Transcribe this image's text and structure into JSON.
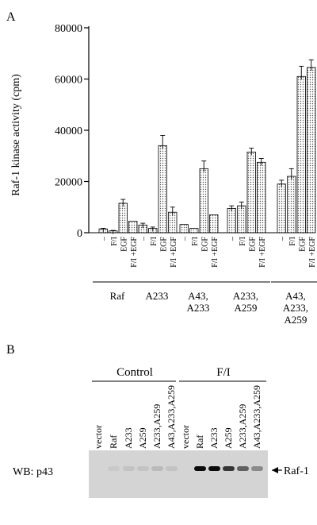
{
  "panel_a_label": "A",
  "panel_b_label": "B",
  "chart_data": {
    "type": "bar",
    "ylabel": "Raf-1 kinase activity (cpm)",
    "ylim": [
      0,
      80000
    ],
    "yticks": [
      "0",
      "20000",
      "40000",
      "60000",
      "80000"
    ],
    "condition_labels": [
      "–",
      "F/I",
      "EGF",
      "F/I +EGF"
    ],
    "groups": [
      {
        "name": "Raf",
        "label_lines": [
          "Raf"
        ],
        "values": [
          1500,
          700,
          11500,
          4500
        ],
        "errors": [
          200,
          200,
          1500,
          0
        ]
      },
      {
        "name": "A233",
        "label_lines": [
          "A233"
        ],
        "values": [
          3000,
          1700,
          34000,
          8000
        ],
        "errors": [
          700,
          500,
          4000,
          2000
        ]
      },
      {
        "name": "A43, A233",
        "label_lines": [
          "A43,",
          "A233"
        ],
        "values": [
          3200,
          1700,
          25000,
          7000
        ],
        "errors": [
          0,
          0,
          3000,
          0
        ]
      },
      {
        "name": "A233, A259",
        "label_lines": [
          "A233,",
          "A259"
        ],
        "values": [
          9500,
          10500,
          31500,
          27500
        ],
        "errors": [
          1000,
          1500,
          1500,
          1500
        ]
      },
      {
        "name": "A43, A233, A259",
        "label_lines": [
          "A43,",
          "A233,",
          "A259"
        ],
        "values": [
          19000,
          22000,
          61000,
          64500
        ],
        "errors": [
          1500,
          3000,
          4000,
          3000
        ]
      }
    ],
    "bar_fill": "#d8d8d8"
  },
  "blot": {
    "left_header": "Control",
    "right_header": "F/I",
    "lanes": [
      "vector",
      "Raf",
      "A233",
      "A259",
      "A233,A259",
      "A43,A233,A259",
      "vector",
      "Raf",
      "A233",
      "A259",
      "A233,A259",
      "A43,A233,A259"
    ],
    "band_intensities": [
      0.0,
      0.05,
      0.08,
      0.08,
      0.12,
      0.08,
      0.0,
      0.95,
      0.95,
      0.75,
      0.55,
      0.35
    ],
    "row_label": "WB: p43",
    "arrow_label": "Raf-1",
    "background": "#d4d4d4"
  }
}
